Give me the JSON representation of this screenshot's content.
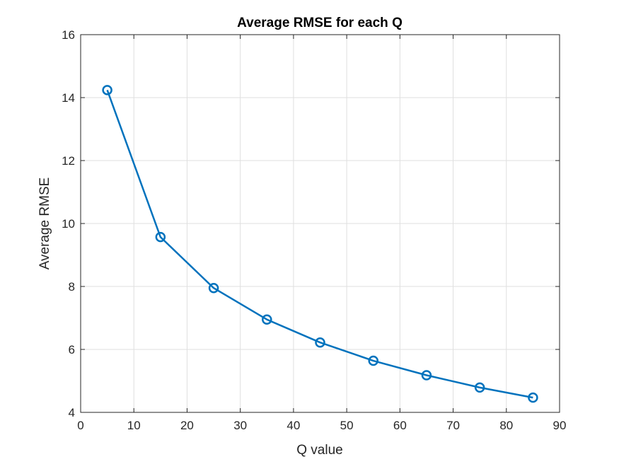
{
  "chart_data": {
    "type": "line",
    "title": "Average RMSE for each Q",
    "xlabel": "Q value",
    "ylabel": "Average RMSE",
    "xlim": [
      0,
      90
    ],
    "ylim": [
      4,
      16
    ],
    "xticks": [
      0,
      10,
      20,
      30,
      40,
      50,
      60,
      70,
      80,
      90
    ],
    "yticks": [
      4,
      6,
      8,
      10,
      12,
      14,
      16
    ],
    "grid": true,
    "legend": "none",
    "series": [
      {
        "color": "#0072BD",
        "marker": "circle",
        "x": [
          5,
          15,
          25,
          35,
          45,
          55,
          65,
          75,
          85
        ],
        "y": [
          14.24,
          9.57,
          7.95,
          6.95,
          6.22,
          5.64,
          5.18,
          4.79,
          4.47
        ]
      }
    ]
  }
}
